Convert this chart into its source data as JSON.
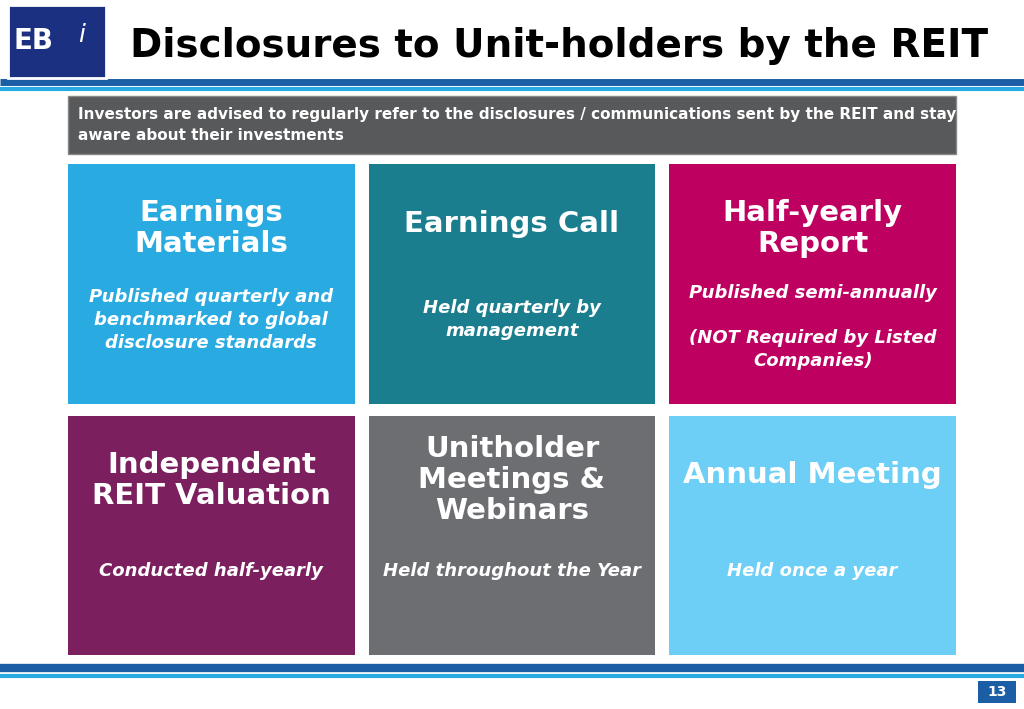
{
  "title": "Disclosures to Unit-holders by the REIT",
  "background_color": "#FFFFFF",
  "banner_bg": "#58595B",
  "banner_text_line1": "Investors are advised to regularly refer to the disclosures / communications sent by the REIT and stay",
  "banner_text_line2": "aware about their investments",
  "banner_text_color": "#FFFFFF",
  "page_number": "13",
  "page_number_bg": "#1B5EA6",
  "line_color_dark": "#1B5EA6",
  "line_color_light": "#27AAE1",
  "cards": [
    {
      "row": 0,
      "col": 0,
      "bg_color": "#29ABE2",
      "title": "Earnings\nMaterials",
      "subtitle": "Published quarterly and\nbenchmarked to global\ndisclosure standards"
    },
    {
      "row": 0,
      "col": 1,
      "bg_color": "#1A7E8E",
      "title": "Earnings Call",
      "subtitle": "Held quarterly by\nmanagement"
    },
    {
      "row": 0,
      "col": 2,
      "bg_color": "#BE0060",
      "title": "Half-yearly\nReport",
      "subtitle": "Published semi-annually\n\n(NOT Required by Listed\nCompanies)"
    },
    {
      "row": 1,
      "col": 0,
      "bg_color": "#7B1F5E",
      "title": "Independent\nREIT Valuation",
      "subtitle": "Conducted half-yearly"
    },
    {
      "row": 1,
      "col": 1,
      "bg_color": "#6D6E71",
      "title": "Unitholder\nMeetings &\nWebinars",
      "subtitle": "Held throughout the Year"
    },
    {
      "row": 1,
      "col": 2,
      "bg_color": "#6DCFF6",
      "title": "Annual Meeting",
      "subtitle": "Held once a year"
    }
  ]
}
